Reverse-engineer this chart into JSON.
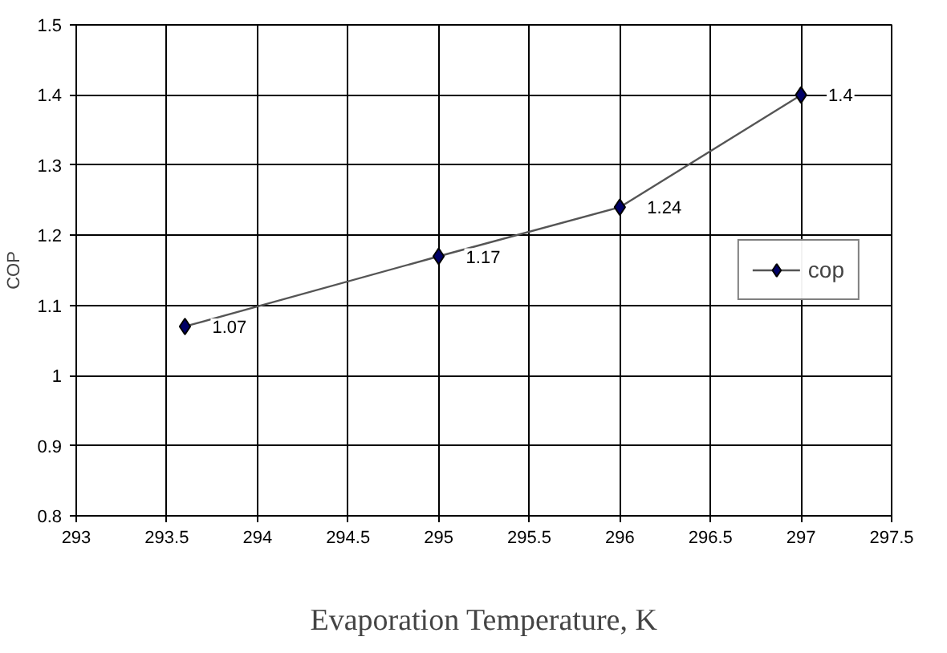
{
  "chart_data": {
    "type": "line",
    "xlabel": "Evaporation Temperature, K",
    "ylabel": "COP",
    "x": [
      293.6,
      295,
      296,
      297
    ],
    "series": [
      {
        "name": "cop",
        "color": "#000066",
        "values": [
          1.07,
          1.17,
          1.24,
          1.4
        ]
      }
    ],
    "xlim": [
      293,
      297.5
    ],
    "xticks": [
      293,
      293.5,
      294,
      294.5,
      295,
      295.5,
      296,
      296.5,
      297,
      297.5
    ],
    "ylim": [
      0.8,
      1.5
    ],
    "yticks": [
      0.8,
      0.9,
      1,
      1.1,
      1.2,
      1.3,
      1.4,
      1.5
    ],
    "grid": true,
    "legend": "right",
    "marker": "diamond",
    "line_style": "solid",
    "data_labels": true
  }
}
